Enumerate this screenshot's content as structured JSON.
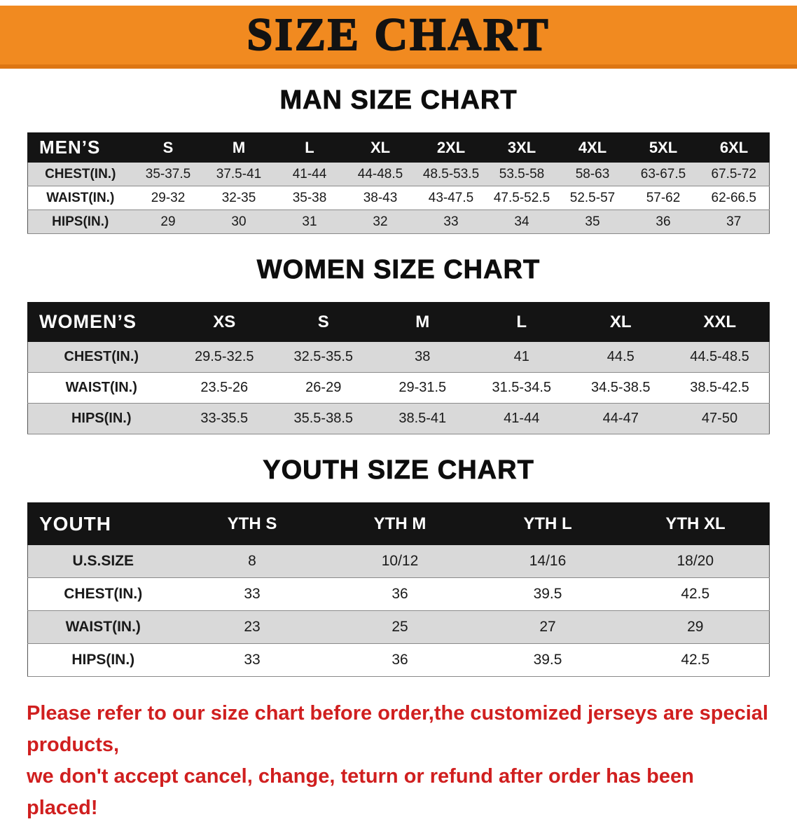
{
  "banner": {
    "title": "SIZE CHART",
    "bg_color": "#F18A20"
  },
  "tables": [
    {
      "section_title": "MAN SIZE CHART",
      "header": [
        "MEN’S",
        "S",
        "M",
        "L",
        "XL",
        "2XL",
        "3XL",
        "4XL",
        "5XL",
        "6XL"
      ],
      "rows": [
        [
          "CHEST(IN.)",
          "35-37.5",
          "37.5-41",
          "41-44",
          "44-48.5",
          "48.5-53.5",
          "53.5-58",
          "58-63",
          "63-67.5",
          "67.5-72"
        ],
        [
          "WAIST(IN.)",
          "29-32",
          "32-35",
          "35-38",
          "38-43",
          "43-47.5",
          "47.5-52.5",
          "52.5-57",
          "57-62",
          "62-66.5"
        ],
        [
          "HIPS(IN.)",
          "29",
          "30",
          "31",
          "32",
          "33",
          "34",
          "35",
          "36",
          "37"
        ]
      ]
    },
    {
      "section_title": "WOMEN SIZE CHART",
      "header": [
        "WOMEN’S",
        "XS",
        "S",
        "M",
        "L",
        "XL",
        "XXL"
      ],
      "rows": [
        [
          "CHEST(IN.)",
          "29.5-32.5",
          "32.5-35.5",
          "38",
          "41",
          "44.5",
          "44.5-48.5"
        ],
        [
          "WAIST(IN.)",
          "23.5-26",
          "26-29",
          "29-31.5",
          "31.5-34.5",
          "34.5-38.5",
          "38.5-42.5"
        ],
        [
          "HIPS(IN.)",
          "33-35.5",
          "35.5-38.5",
          "38.5-41",
          "41-44",
          "44-47",
          "47-50"
        ]
      ]
    },
    {
      "section_title": "YOUTH SIZE CHART",
      "header": [
        "YOUTH",
        "YTH S",
        "YTH M",
        "YTH L",
        "YTH XL"
      ],
      "rows": [
        [
          "U.S.SIZE",
          "8",
          "10/12",
          "14/16",
          "18/20"
        ],
        [
          "CHEST(IN.)",
          "33",
          "36",
          "39.5",
          "42.5"
        ],
        [
          "WAIST(IN.)",
          "23",
          "25",
          "27",
          "29"
        ],
        [
          "HIPS(IN.)",
          "33",
          "36",
          "39.5",
          "42.5"
        ]
      ]
    }
  ],
  "footer": {
    "line1": "Please refer to our size chart before order,the customized jerseys are special products,",
    "line2": "we don't accept cancel, change, teturn or refund after order has been placed!",
    "text_color": "#D01F1F"
  },
  "colors": {
    "banner_bg": "#F18A20",
    "banner_edge": "#DD7613",
    "table_header_bg": "#141414",
    "row_alt_bg": "#D9D9D9",
    "row_bg": "#FFFFFF",
    "footer_text": "#D01F1F",
    "title_text": "#121212"
  }
}
